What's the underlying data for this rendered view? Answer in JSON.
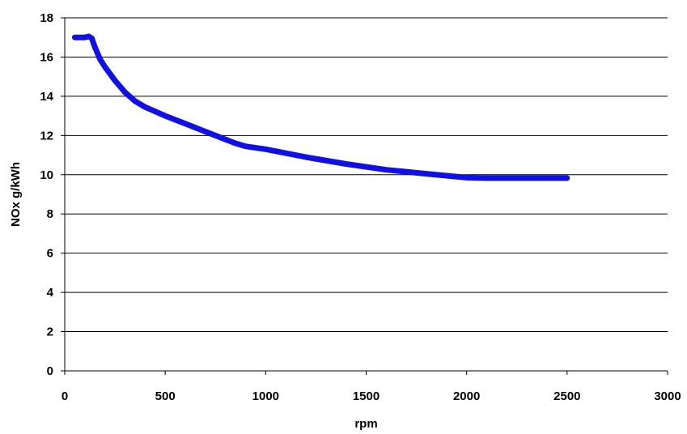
{
  "chart_data": {
    "type": "line",
    "title": "",
    "xlabel": "rpm",
    "ylabel": "NOx g/kWh",
    "xlim": [
      0,
      3000
    ],
    "ylim": [
      0,
      18
    ],
    "xticks": [
      0,
      500,
      1000,
      1500,
      2000,
      2500,
      3000
    ],
    "yticks": [
      0,
      2,
      4,
      6,
      8,
      10,
      12,
      14,
      16,
      18
    ],
    "grid": "horizontal",
    "legend": "none",
    "series": [
      {
        "color": "#1010e6",
        "x": [
          50,
          100,
          120,
          135,
          150,
          175,
          200,
          250,
          300,
          350,
          400,
          500,
          600,
          700,
          800,
          850,
          900,
          1000,
          1200,
          1400,
          1600,
          1800,
          2000,
          2100,
          2200,
          2300,
          2400,
          2500
        ],
        "y": [
          17.0,
          17.0,
          17.05,
          16.95,
          16.5,
          15.9,
          15.5,
          14.8,
          14.2,
          13.75,
          13.45,
          13.0,
          12.6,
          12.2,
          11.8,
          11.6,
          11.45,
          11.3,
          10.9,
          10.55,
          10.25,
          10.05,
          9.85,
          9.83,
          9.83,
          9.83,
          9.83,
          9.83
        ]
      }
    ]
  }
}
